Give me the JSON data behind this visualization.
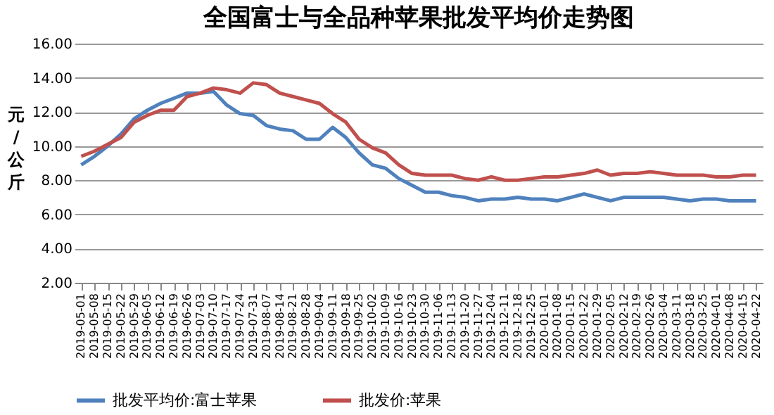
{
  "chart_data": {
    "type": "line",
    "title": "全国富士与全品种苹果批发平均价走势图",
    "ylabel": "元/公斤",
    "categories": [
      "2019-05-01",
      "2019-05-08",
      "2019-05-15",
      "2019-05-22",
      "2019-05-29",
      "2019-06-05",
      "2019-06-12",
      "2019-06-19",
      "2019-06-26",
      "2019-07-03",
      "2019-07-10",
      "2019-07-17",
      "2019-07-24",
      "2019-07-31",
      "2019-08-07",
      "2019-08-14",
      "2019-08-21",
      "2019-08-28",
      "2019-09-04",
      "2019-09-11",
      "2019-09-18",
      "2019-09-25",
      "2019-10-02",
      "2019-10-09",
      "2019-10-16",
      "2019-10-23",
      "2019-10-30",
      "2019-11-06",
      "2019-11-13",
      "2019-11-20",
      "2019-11-27",
      "2019-12-04",
      "2019-12-11",
      "2019-12-18",
      "2019-12-25",
      "2020-01-01",
      "2020-01-08",
      "2020-01-15",
      "2020-01-22",
      "2020-01-29",
      "2020-02-05",
      "2020-02-12",
      "2020-02-19",
      "2020-02-26",
      "2020-03-04",
      "2020-03-11",
      "2020-03-18",
      "2020-03-25",
      "2020-04-01",
      "2020-04-08",
      "2020-04-15",
      "2020-04-22"
    ],
    "series": [
      {
        "name": "批发平均价:富士苹果",
        "color": "#4f81bd",
        "values": [
          8.9,
          9.4,
          10.0,
          10.7,
          11.6,
          12.1,
          12.5,
          12.8,
          13.1,
          13.1,
          13.2,
          12.4,
          11.9,
          11.8,
          11.2,
          11.0,
          10.9,
          10.4,
          10.4,
          11.1,
          10.5,
          9.6,
          8.9,
          8.7,
          8.1,
          7.7,
          7.3,
          7.3,
          7.1,
          7.0,
          6.8,
          6.9,
          6.9,
          7.0,
          6.9,
          6.9,
          6.8,
          7.0,
          7.2,
          7.0,
          6.8,
          7.0,
          7.0,
          7.0,
          7.0,
          6.9,
          6.8,
          6.9,
          6.9,
          6.8,
          6.8,
          6.8
        ]
      },
      {
        "name": "批发价:苹果",
        "color": "#c0504d",
        "values": [
          9.4,
          9.7,
          10.1,
          10.5,
          11.4,
          11.8,
          12.1,
          12.1,
          12.9,
          13.1,
          13.4,
          13.3,
          13.1,
          13.7,
          13.6,
          13.1,
          12.9,
          12.7,
          12.5,
          11.9,
          11.4,
          10.4,
          9.9,
          9.6,
          8.9,
          8.4,
          8.3,
          8.3,
          8.3,
          8.1,
          8.0,
          8.2,
          8.0,
          8.0,
          8.1,
          8.2,
          8.2,
          8.3,
          8.4,
          8.6,
          8.3,
          8.4,
          8.4,
          8.5,
          8.4,
          8.3,
          8.3,
          8.3,
          8.2,
          8.2,
          8.3,
          8.3
        ]
      }
    ],
    "ylim": [
      2,
      16
    ],
    "yticks": [
      {
        "value": 2,
        "label": "2.00"
      },
      {
        "value": 4,
        "label": "4.00"
      },
      {
        "value": 6,
        "label": "6.00"
      },
      {
        "value": 8,
        "label": "8.00"
      },
      {
        "value": 10,
        "label": "10.00"
      },
      {
        "value": 12,
        "label": "12.00"
      },
      {
        "value": 14,
        "label": "14.00"
      },
      {
        "value": 16,
        "label": "16.00"
      }
    ],
    "grid": "y",
    "legend": "bottom",
    "marker": "none",
    "line_style": "solid"
  }
}
